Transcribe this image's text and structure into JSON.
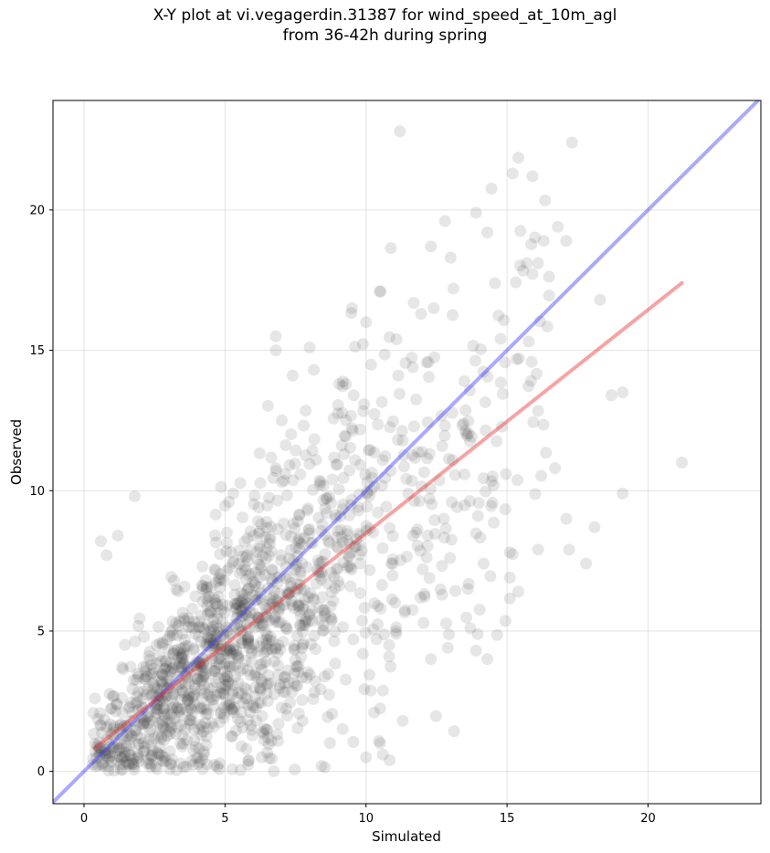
{
  "chart_data": {
    "type": "scatter",
    "title_line1": "X-Y plot at vi.vegagerdin.31387 for wind_speed_at_10m_agl",
    "title_line2": "from 36-42h during spring",
    "xlabel": "Simulated",
    "ylabel": "Observed",
    "xlim": [
      -1.1,
      24.0
    ],
    "ylim": [
      -1.15,
      23.9
    ],
    "xticks": [
      0,
      5,
      10,
      15,
      20
    ],
    "yticks": [
      0,
      5,
      10,
      15,
      20
    ],
    "grid": true,
    "point_color": "#303030",
    "point_alpha": 0.12,
    "identity_line": {
      "color": "#3333ff",
      "slope": 1,
      "intercept": 0
    },
    "fit_line": {
      "color": "#ee3333",
      "x": [
        0.4,
        21.2
      ],
      "y": [
        0.85,
        17.4
      ]
    },
    "series": [
      {
        "highlight_points": [
          [
            11.2,
            22.8
          ],
          [
            17.3,
            22.4
          ],
          [
            15.2,
            21.3
          ],
          [
            15.9,
            21.2
          ],
          [
            12.8,
            19.6
          ],
          [
            13.9,
            19.9
          ],
          [
            14.3,
            19.2
          ],
          [
            16.8,
            19.4
          ],
          [
            12.3,
            18.7
          ],
          [
            13.0,
            18.3
          ],
          [
            16.3,
            18.9
          ],
          [
            17.1,
            18.9
          ],
          [
            15.7,
            18.1
          ],
          [
            16.1,
            18.1
          ],
          [
            18.3,
            16.8
          ],
          [
            19.1,
            13.5
          ],
          [
            18.7,
            13.4
          ],
          [
            21.2,
            11.0
          ],
          [
            19.1,
            9.9
          ],
          [
            18.1,
            8.7
          ],
          [
            17.8,
            7.4
          ],
          [
            17.2,
            7.9
          ],
          [
            17.1,
            9.0
          ],
          [
            16.7,
            10.8
          ],
          [
            15.4,
            6.4
          ],
          [
            15.1,
            6.9
          ],
          [
            15.1,
            7.8
          ],
          [
            16.1,
            7.9
          ],
          [
            14.3,
            4.0
          ],
          [
            13.9,
            4.3
          ],
          [
            13.7,
            5.1
          ],
          [
            12.9,
            4.4
          ],
          [
            12.3,
            4.0
          ],
          [
            11.3,
            1.8
          ],
          [
            10.6,
            0.6
          ],
          [
            10.5,
            1.0
          ],
          [
            10.0,
            0.5
          ],
          [
            1.8,
            9.8
          ],
          [
            0.6,
            8.2
          ],
          [
            0.8,
            7.7
          ],
          [
            1.2,
            8.4
          ],
          [
            9.5,
            16.5
          ],
          [
            10.0,
            16.0
          ],
          [
            7.4,
            14.1
          ],
          [
            6.8,
            15.0
          ],
          [
            6.8,
            15.5
          ],
          [
            8.0,
            15.1
          ],
          [
            13.1,
            17.2
          ],
          [
            12.4,
            16.5
          ]
        ],
        "seed": 31387,
        "n_random": 1450
      }
    ]
  }
}
